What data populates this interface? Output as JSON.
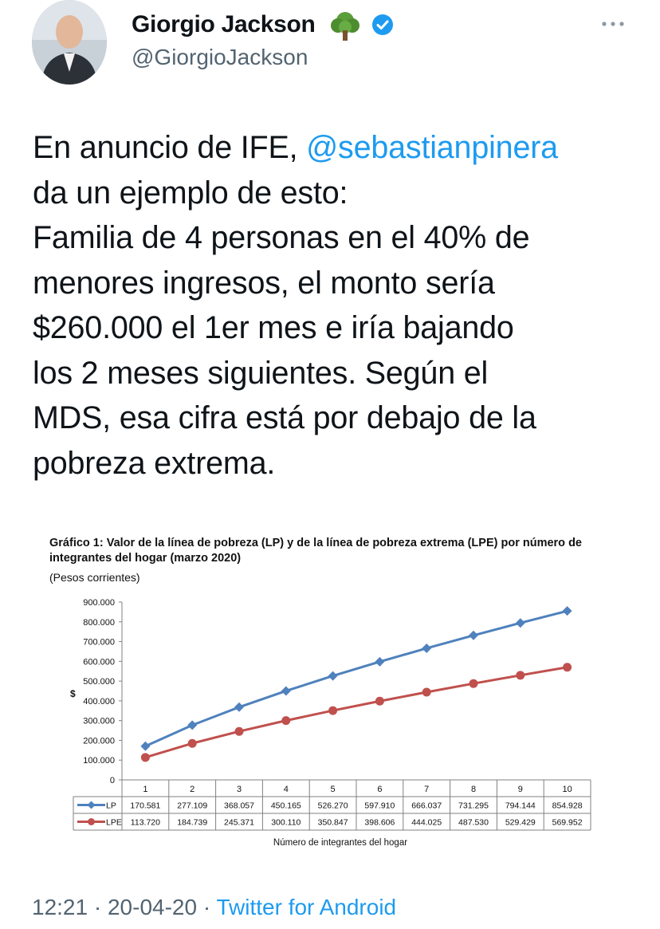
{
  "user": {
    "display_name": "Giorgio Jackson",
    "handle": "@GiorgioJackson",
    "emoji_icon": "tree-icon",
    "verified_icon": "verified-badge-icon",
    "more_icon": "more-options-icon"
  },
  "tweet": {
    "lines": [
      {
        "pre": "En anuncio de IFE, ",
        "mention": "@sebastianpinera"
      },
      {
        "text": "da un ejemplo de esto:"
      },
      {
        "text": "Familia de 4 personas en el 40% de"
      },
      {
        "text": "menores ingresos, el monto sería"
      },
      {
        "text": "$260.000 el 1er mes e iría bajando"
      },
      {
        "text": "los 2 meses siguientes. Según el"
      },
      {
        "text": "MDS, esa cifra está por debajo de la"
      },
      {
        "text": "pobreza extrema."
      }
    ]
  },
  "chart_data": {
    "type": "line",
    "title": "Gráfico 1: Valor de la línea de pobreza (LP) y de la línea de pobreza extrema (LPE) por número de integrantes del hogar (marzo 2020)",
    "subtitle": "(Pesos corrientes)",
    "ylabel": "$",
    "xlabel": "Número de integrantes del hogar",
    "ylim": [
      0,
      900000
    ],
    "y_ticks": [
      "0",
      "100.000",
      "200.000",
      "300.000",
      "400.000",
      "500.000",
      "600.000",
      "700.000",
      "800.000",
      "900.000"
    ],
    "categories": [
      "1",
      "2",
      "3",
      "4",
      "5",
      "6",
      "7",
      "8",
      "9",
      "10"
    ],
    "series": [
      {
        "name": "LP",
        "color": "#4f81bd",
        "values": [
          170581,
          277109,
          368057,
          450165,
          526270,
          597910,
          666037,
          731295,
          794144,
          854928
        ],
        "labels": [
          "170.581",
          "277.109",
          "368.057",
          "450.165",
          "526.270",
          "597.910",
          "666.037",
          "731.295",
          "794.144",
          "854.928"
        ]
      },
      {
        "name": "LPE",
        "color": "#c0504d",
        "values": [
          113720,
          184739,
          245371,
          300110,
          350847,
          398606,
          444025,
          487530,
          529429,
          569952
        ],
        "labels": [
          "113.720",
          "184.739",
          "245.371",
          "300.110",
          "350.847",
          "398.606",
          "444.025",
          "487.530",
          "529.429",
          "569.952"
        ]
      }
    ],
    "grid": false,
    "legend": "data-table"
  },
  "footer": {
    "time": "12:21",
    "date": "20-04-20",
    "separator": " · ",
    "source": "Twitter for Android"
  }
}
